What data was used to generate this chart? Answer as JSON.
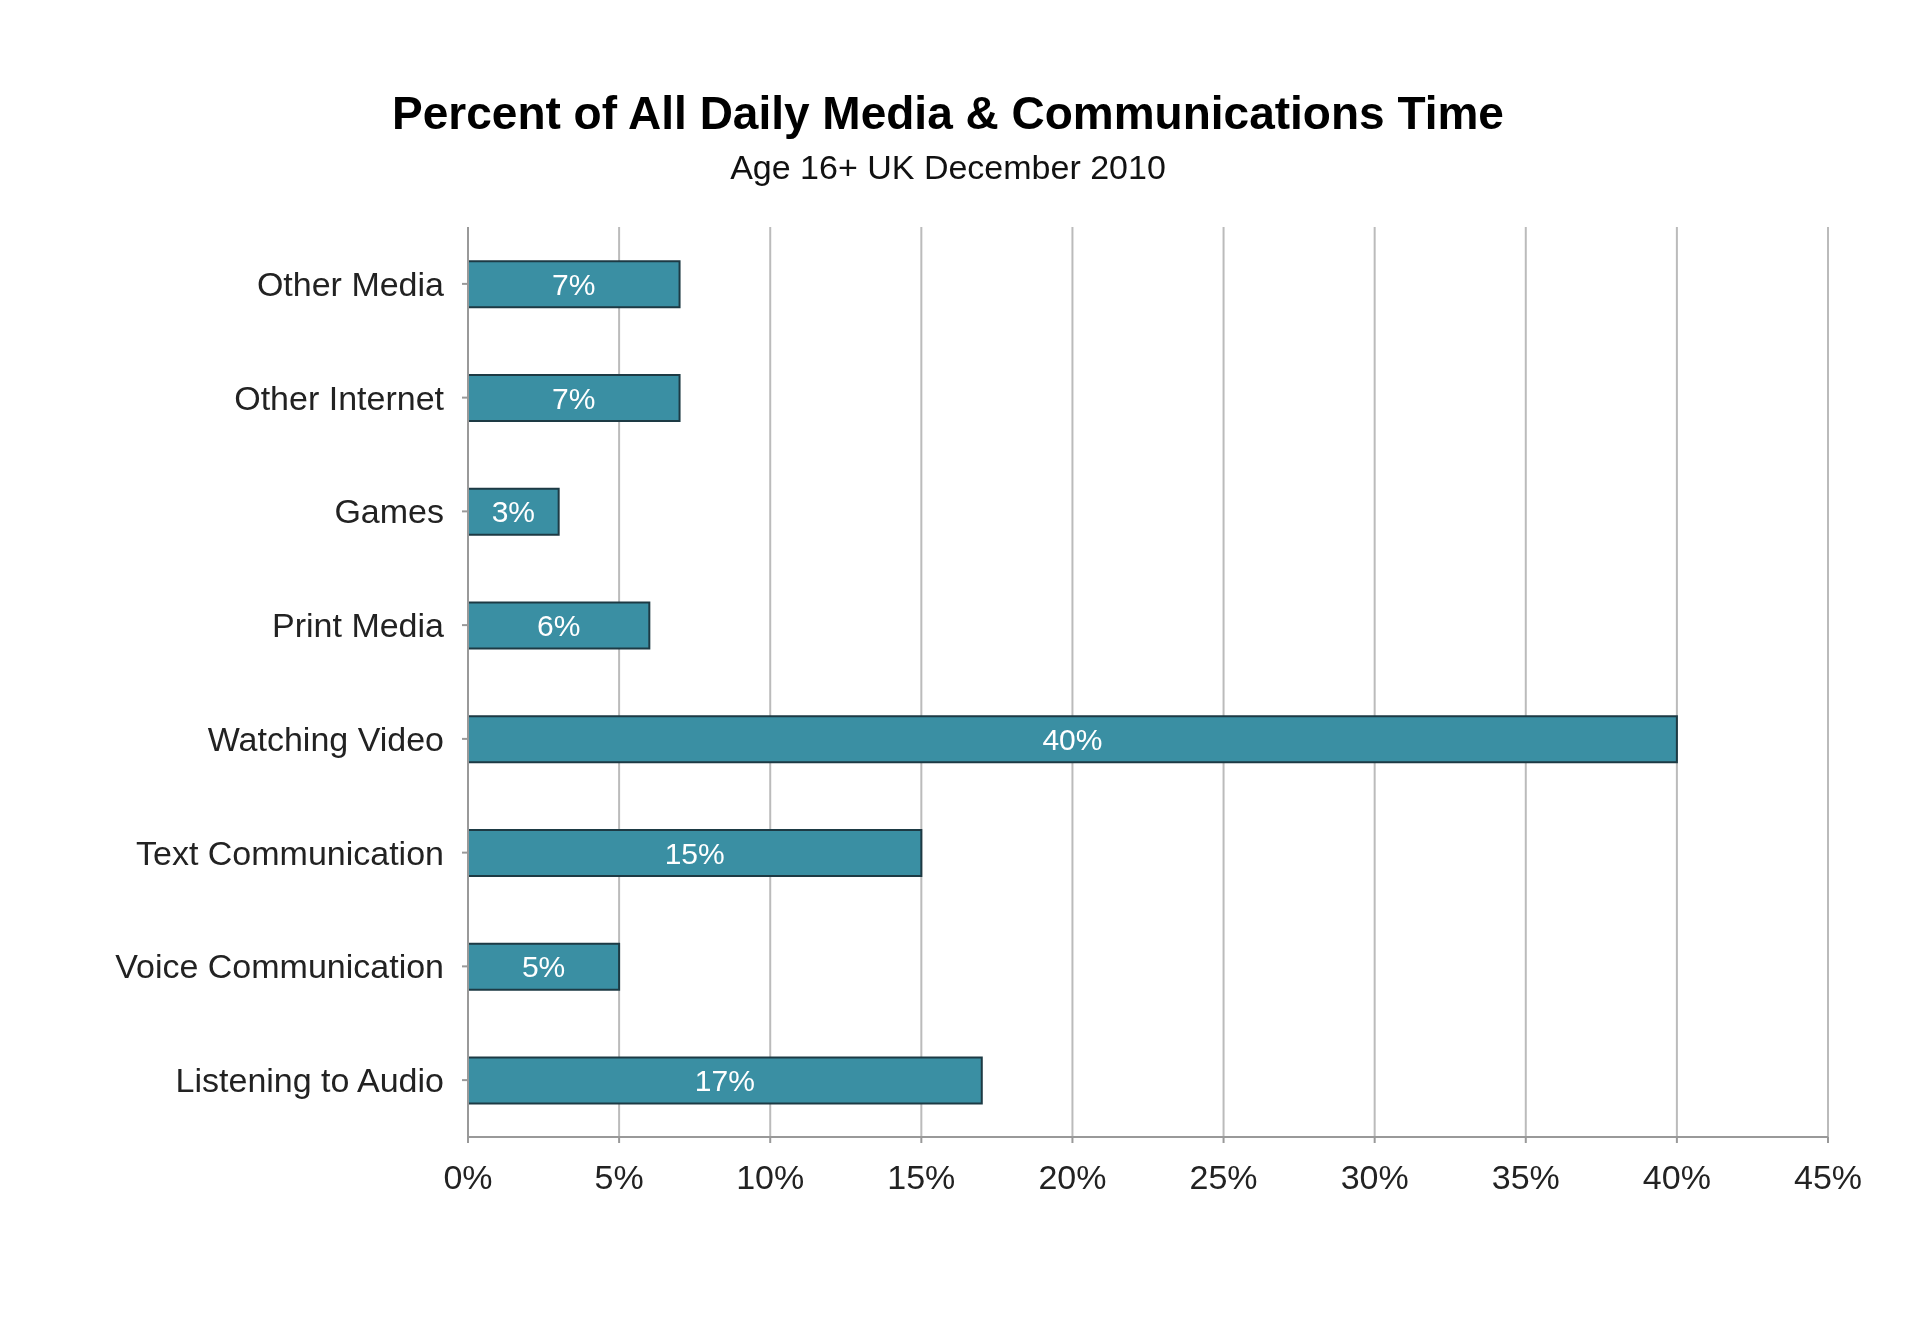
{
  "chart_data": {
    "type": "bar",
    "orientation": "horizontal",
    "title": "Percent of All Daily Media & Communications Time",
    "subtitle": "Age 16+ UK December 2010",
    "categories": [
      "Other Media",
      "Other Internet",
      "Games",
      "Print Media",
      "Watching Video",
      "Text Communication",
      "Voice Communication",
      "Listening to Audio"
    ],
    "values": [
      7,
      7,
      3,
      6,
      40,
      15,
      5,
      17
    ],
    "value_labels": [
      "7%",
      "7%",
      "3%",
      "6%",
      "40%",
      "15%",
      "5%",
      "17%"
    ],
    "color": "#3a8fa3",
    "xlim": [
      0,
      45
    ],
    "xticks": [
      {
        "value": 0,
        "label": "0%"
      },
      {
        "value": 5,
        "label": "5%"
      },
      {
        "value": 10,
        "label": "10%"
      },
      {
        "value": 15,
        "label": "15%"
      },
      {
        "value": 20,
        "label": "20%"
      },
      {
        "value": 25,
        "label": "25%"
      },
      {
        "value": 30,
        "label": "30%"
      },
      {
        "value": 35,
        "label": "35%"
      },
      {
        "value": 40,
        "label": "40%"
      },
      {
        "value": 45,
        "label": "45%"
      }
    ],
    "grid": "x",
    "legend": false
  }
}
